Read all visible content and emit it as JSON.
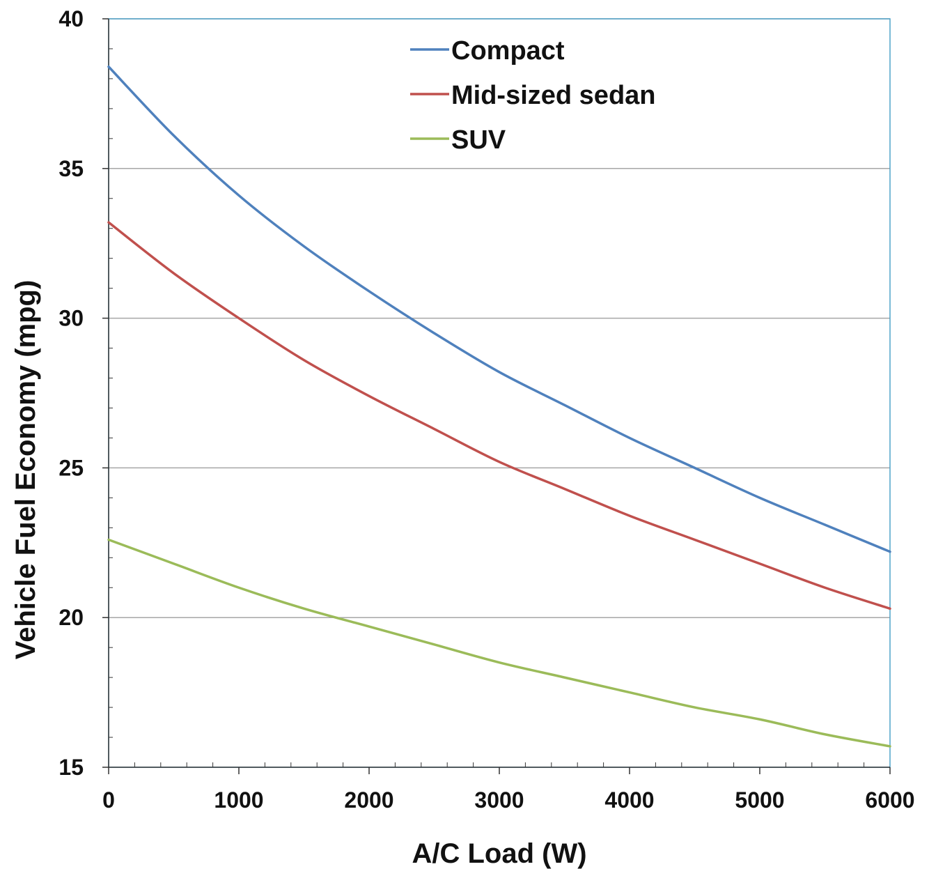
{
  "chart_data": {
    "type": "line",
    "title": "",
    "xlabel": "A/C Load (W)",
    "ylabel": "Vehicle  Fuel Economy (mpg)",
    "xlim": [
      0,
      6000
    ],
    "ylim": [
      15,
      40
    ],
    "xticks": [
      0,
      1000,
      2000,
      3000,
      4000,
      5000,
      6000
    ],
    "yticks": [
      15,
      20,
      25,
      30,
      35,
      40
    ],
    "grid": "horizontal",
    "legend_position": "top-center",
    "series": [
      {
        "name": "Compact",
        "color": "#4f81bd",
        "x": [
          0,
          500,
          1000,
          1500,
          2000,
          2500,
          3000,
          3500,
          4000,
          4500,
          5000,
          5500,
          6000
        ],
        "y": [
          38.4,
          36.1,
          34.1,
          32.4,
          30.9,
          29.5,
          28.2,
          27.1,
          26.0,
          25.0,
          24.0,
          23.1,
          22.2
        ]
      },
      {
        "name": "Mid-sized sedan",
        "color": "#c0504d",
        "x": [
          0,
          500,
          1000,
          1500,
          2000,
          2500,
          3000,
          3500,
          4000,
          4500,
          5000,
          5500,
          6000
        ],
        "y": [
          33.2,
          31.5,
          30.0,
          28.6,
          27.4,
          26.3,
          25.2,
          24.3,
          23.4,
          22.6,
          21.8,
          21.0,
          20.3
        ]
      },
      {
        "name": "SUV",
        "color": "#9bbb59",
        "x": [
          0,
          500,
          1000,
          1500,
          2000,
          2500,
          3000,
          3500,
          4000,
          4500,
          5000,
          5500,
          6000
        ],
        "y": [
          22.6,
          21.8,
          21.0,
          20.3,
          19.7,
          19.1,
          18.5,
          18.0,
          17.5,
          17.0,
          16.6,
          16.1,
          15.7
        ]
      }
    ]
  }
}
